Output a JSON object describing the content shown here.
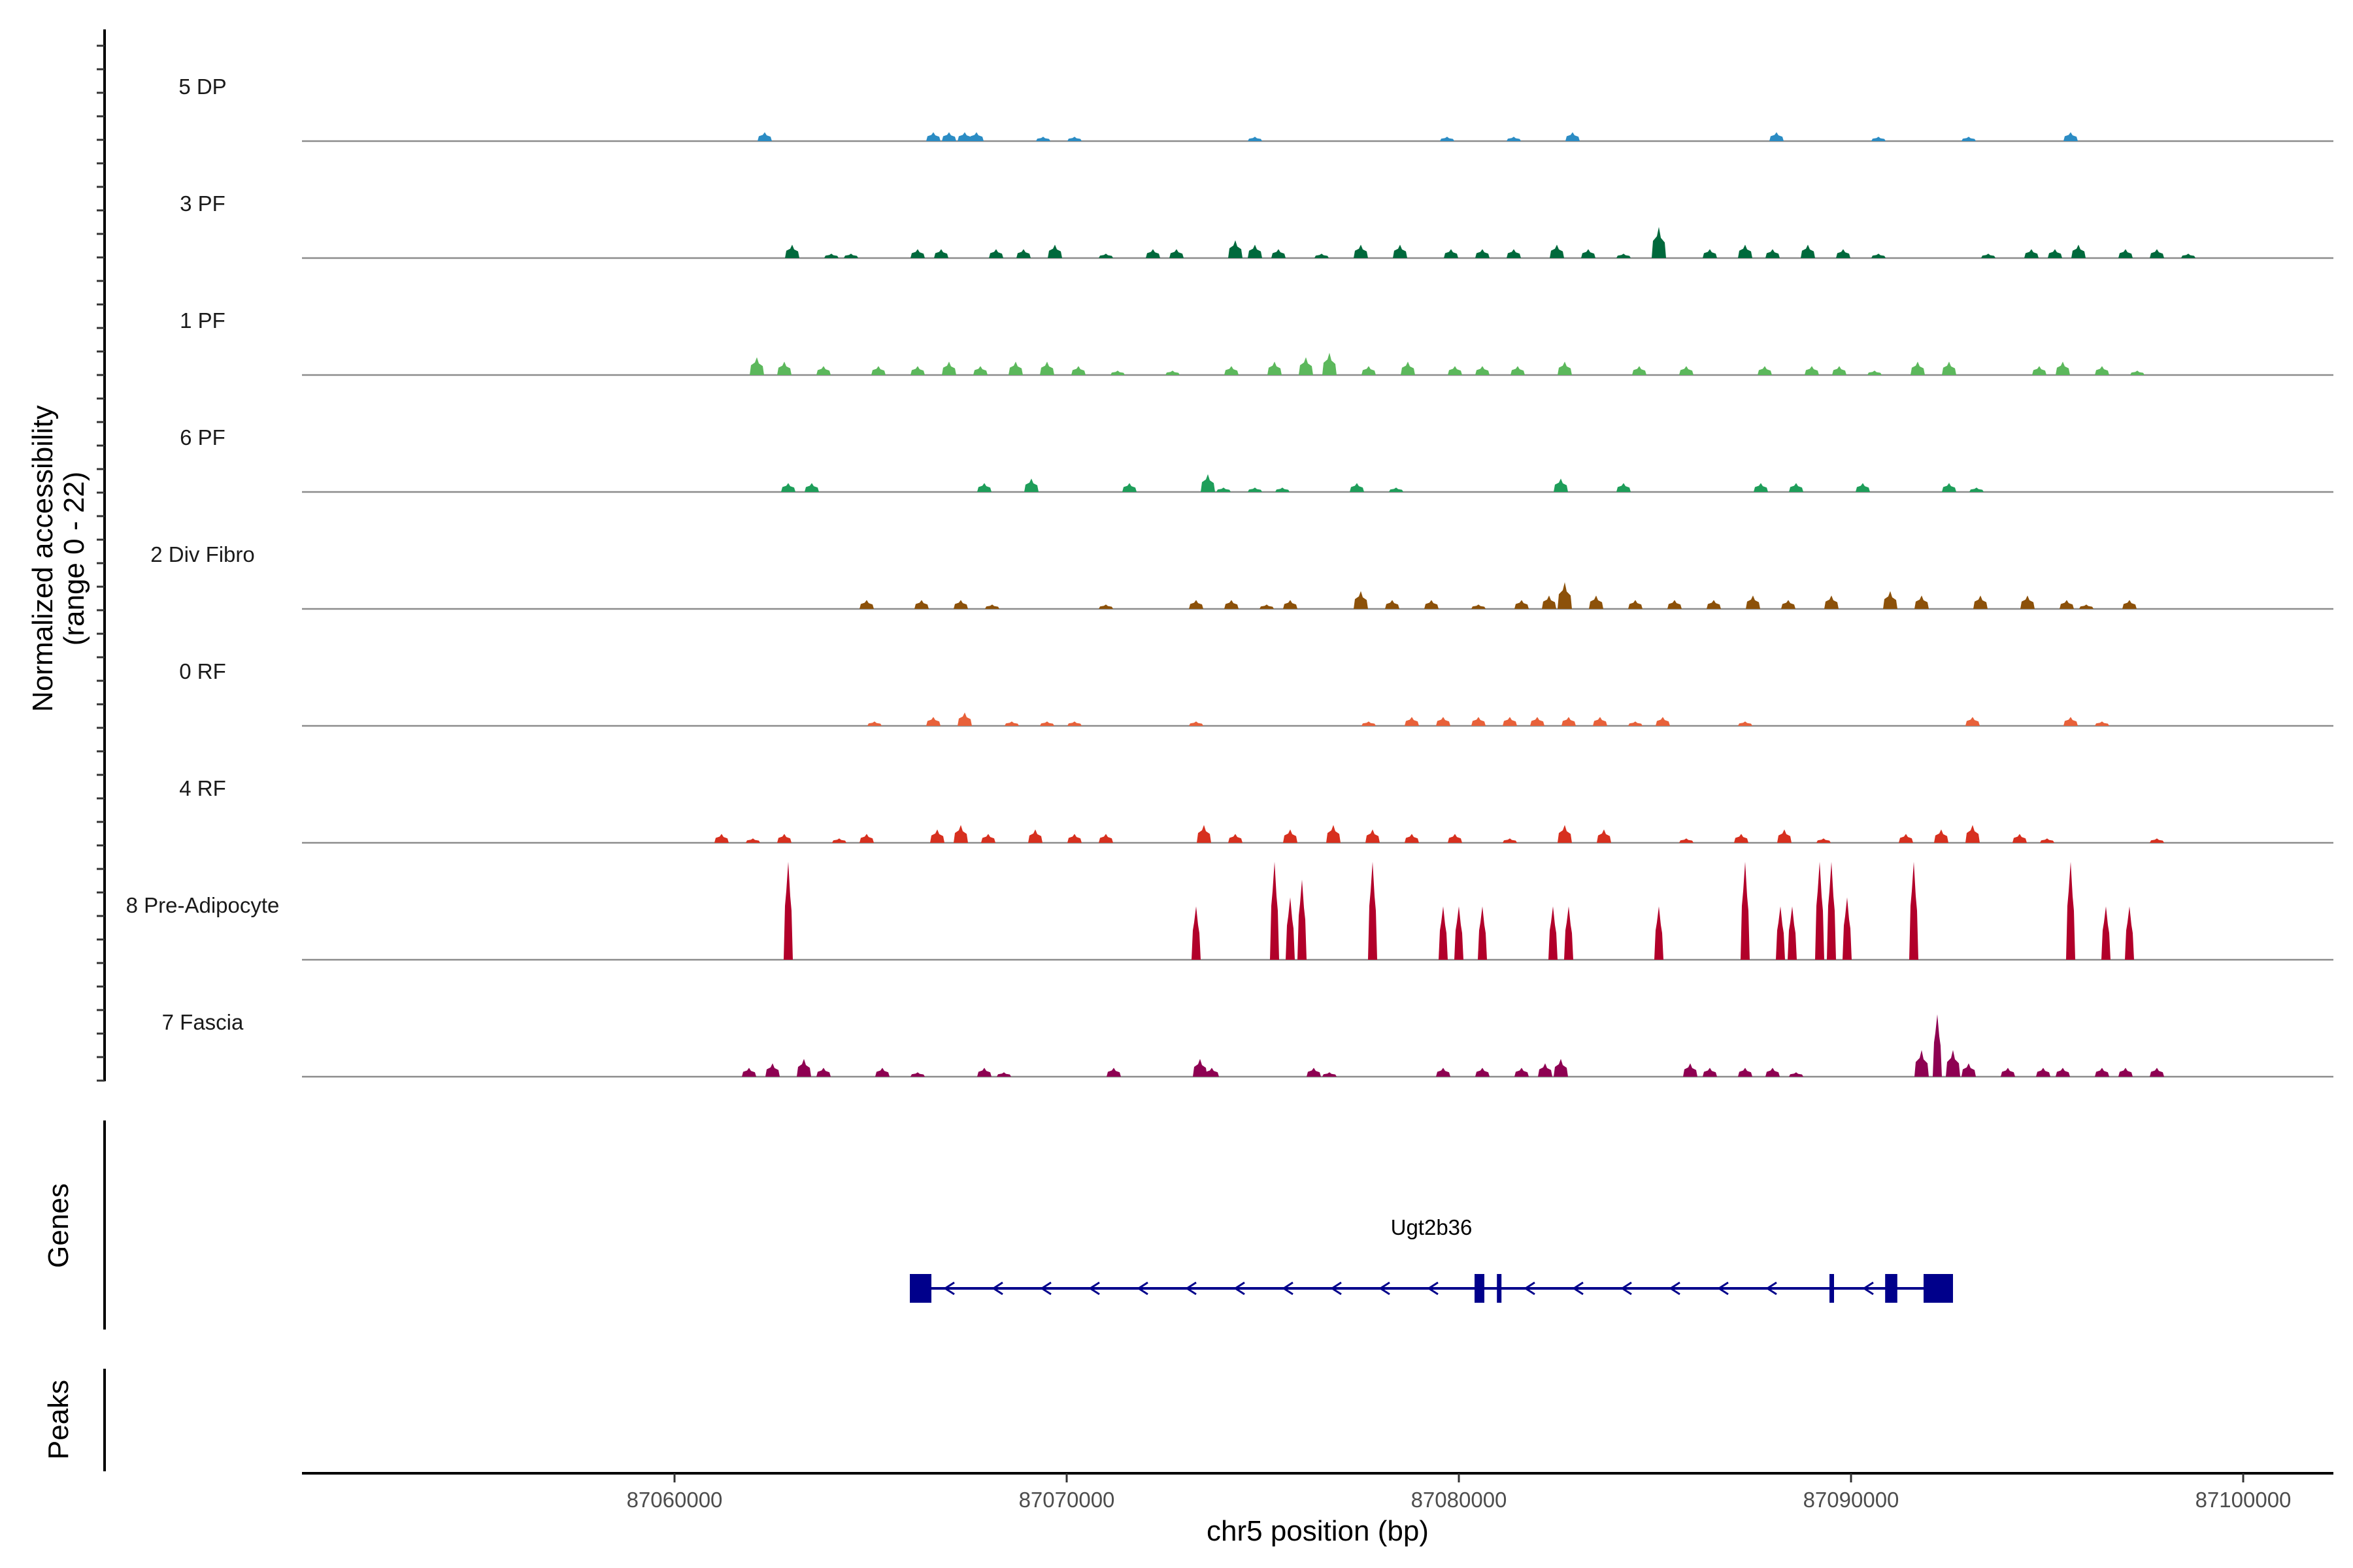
{
  "chart_data": {
    "type": "area",
    "title": "",
    "ylabel": "Normalized accessibility\n(range 0 - 22)",
    "y_range_label": "(range 0 - 22)",
    "ylabel_line1": "Normalized accessibility",
    "ylim": [
      0,
      22
    ],
    "xlabel": "chr5 position (bp)",
    "xlim": [
      87050500,
      87102300
    ],
    "x_ticks": [
      87060000,
      87070000,
      87080000,
      87090000,
      87100000
    ],
    "x_tick_labels": [
      "87060000",
      "87070000",
      "87080000",
      "87090000",
      "87100000"
    ],
    "tracks": [
      {
        "name": "5 DP",
        "color": "#2b8cc4",
        "peaks": [
          [
            87062300,
            2
          ],
          [
            87066600,
            2
          ],
          [
            87067000,
            2
          ],
          [
            87067400,
            2
          ],
          [
            87067700,
            2
          ],
          [
            87069400,
            1
          ],
          [
            87070200,
            1
          ],
          [
            87074800,
            1
          ],
          [
            87079700,
            1
          ],
          [
            87081400,
            1
          ],
          [
            87082900,
            2
          ],
          [
            87088100,
            2
          ],
          [
            87090700,
            1
          ],
          [
            87093000,
            1
          ],
          [
            87095600,
            2
          ]
        ]
      },
      {
        "name": "3 PF",
        "color": "#00693c",
        "peaks": [
          [
            87063000,
            3
          ],
          [
            87064000,
            1
          ],
          [
            87064500,
            1
          ],
          [
            87066200,
            2
          ],
          [
            87066800,
            2
          ],
          [
            87068200,
            2
          ],
          [
            87068900,
            2
          ],
          [
            87069700,
            3
          ],
          [
            87071000,
            1
          ],
          [
            87072200,
            2
          ],
          [
            87072800,
            2
          ],
          [
            87074300,
            4
          ],
          [
            87074800,
            3
          ],
          [
            87075400,
            2
          ],
          [
            87076500,
            1
          ],
          [
            87077500,
            3
          ],
          [
            87078500,
            3
          ],
          [
            87079800,
            2
          ],
          [
            87080600,
            2
          ],
          [
            87081400,
            2
          ],
          [
            87082500,
            3
          ],
          [
            87083300,
            2
          ],
          [
            87084200,
            1
          ],
          [
            87085100,
            7
          ],
          [
            87086400,
            2
          ],
          [
            87087300,
            3
          ],
          [
            87088000,
            2
          ],
          [
            87088900,
            3
          ],
          [
            87089800,
            2
          ],
          [
            87090700,
            1
          ],
          [
            87093500,
            1
          ],
          [
            87094600,
            2
          ],
          [
            87095200,
            2
          ],
          [
            87095800,
            3
          ],
          [
            87097000,
            2
          ],
          [
            87097800,
            2
          ],
          [
            87098600,
            1
          ]
        ]
      },
      {
        "name": "1 PF",
        "color": "#5cb85c",
        "peaks": [
          [
            87062100,
            4
          ],
          [
            87062800,
            3
          ],
          [
            87063800,
            2
          ],
          [
            87065200,
            2
          ],
          [
            87066200,
            2
          ],
          [
            87067000,
            3
          ],
          [
            87067800,
            2
          ],
          [
            87068700,
            3
          ],
          [
            87069500,
            3
          ],
          [
            87070300,
            2
          ],
          [
            87071300,
            1
          ],
          [
            87072700,
            1
          ],
          [
            87074200,
            2
          ],
          [
            87075300,
            3
          ],
          [
            87076100,
            4
          ],
          [
            87076700,
            5
          ],
          [
            87077700,
            2
          ],
          [
            87078700,
            3
          ],
          [
            87079900,
            2
          ],
          [
            87080600,
            2
          ],
          [
            87081500,
            2
          ],
          [
            87082700,
            3
          ],
          [
            87084600,
            2
          ],
          [
            87085800,
            2
          ],
          [
            87087800,
            2
          ],
          [
            87089000,
            2
          ],
          [
            87089700,
            2
          ],
          [
            87090600,
            1
          ],
          [
            87091700,
            3
          ],
          [
            87092500,
            3
          ],
          [
            87094800,
            2
          ],
          [
            87095400,
            3
          ],
          [
            87096400,
            2
          ],
          [
            87097300,
            1
          ]
        ]
      },
      {
        "name": "6 PF",
        "color": "#1e9e5a",
        "peaks": [
          [
            87062900,
            2
          ],
          [
            87063500,
            2
          ],
          [
            87067900,
            2
          ],
          [
            87069100,
            3
          ],
          [
            87071600,
            2
          ],
          [
            87073600,
            4
          ],
          [
            87074000,
            1
          ],
          [
            87074800,
            1
          ],
          [
            87075500,
            1
          ],
          [
            87077400,
            2
          ],
          [
            87078400,
            1
          ],
          [
            87082600,
            3
          ],
          [
            87084200,
            2
          ],
          [
            87087700,
            2
          ],
          [
            87088600,
            2
          ],
          [
            87090300,
            2
          ],
          [
            87092500,
            2
          ],
          [
            87093200,
            1
          ]
        ]
      },
      {
        "name": "2 Div Fibro",
        "color": "#8c510a",
        "peaks": [
          [
            87064900,
            2
          ],
          [
            87066300,
            2
          ],
          [
            87067300,
            2
          ],
          [
            87068100,
            1
          ],
          [
            87071000,
            1
          ],
          [
            87073300,
            2
          ],
          [
            87074200,
            2
          ],
          [
            87075100,
            1
          ],
          [
            87075700,
            2
          ],
          [
            87077500,
            4
          ],
          [
            87078300,
            2
          ],
          [
            87079300,
            2
          ],
          [
            87080500,
            1
          ],
          [
            87081600,
            2
          ],
          [
            87082300,
            3
          ],
          [
            87082700,
            6
          ],
          [
            87083500,
            3
          ],
          [
            87084500,
            2
          ],
          [
            87085500,
            2
          ],
          [
            87086500,
            2
          ],
          [
            87087500,
            3
          ],
          [
            87088400,
            2
          ],
          [
            87089500,
            3
          ],
          [
            87091000,
            4
          ],
          [
            87091800,
            3
          ],
          [
            87093300,
            3
          ],
          [
            87094500,
            3
          ],
          [
            87095500,
            2
          ],
          [
            87096000,
            1
          ],
          [
            87097100,
            2
          ]
        ]
      },
      {
        "name": "0 RF",
        "color": "#e8613a",
        "peaks": [
          [
            87065100,
            1
          ],
          [
            87066600,
            2
          ],
          [
            87067400,
            3
          ],
          [
            87068600,
            1
          ],
          [
            87069500,
            1
          ],
          [
            87070200,
            1
          ],
          [
            87073300,
            1
          ],
          [
            87077700,
            1
          ],
          [
            87078800,
            2
          ],
          [
            87079600,
            2
          ],
          [
            87080500,
            2
          ],
          [
            87081300,
            2
          ],
          [
            87082000,
            2
          ],
          [
            87082800,
            2
          ],
          [
            87083600,
            2
          ],
          [
            87084500,
            1
          ],
          [
            87085200,
            2
          ],
          [
            87087300,
            1
          ],
          [
            87093100,
            2
          ],
          [
            87095600,
            2
          ],
          [
            87096400,
            1
          ]
        ]
      },
      {
        "name": "4 RF",
        "color": "#d7301f",
        "peaks": [
          [
            87061200,
            2
          ],
          [
            87062000,
            1
          ],
          [
            87062800,
            2
          ],
          [
            87064200,
            1
          ],
          [
            87064900,
            2
          ],
          [
            87066700,
            3
          ],
          [
            87067300,
            4
          ],
          [
            87068000,
            2
          ],
          [
            87069200,
            3
          ],
          [
            87070200,
            2
          ],
          [
            87071000,
            2
          ],
          [
            87073500,
            4
          ],
          [
            87074300,
            2
          ],
          [
            87075700,
            3
          ],
          [
            87076800,
            4
          ],
          [
            87077800,
            3
          ],
          [
            87078800,
            2
          ],
          [
            87079900,
            2
          ],
          [
            87081300,
            1
          ],
          [
            87082700,
            4
          ],
          [
            87083700,
            3
          ],
          [
            87085800,
            1
          ],
          [
            87087200,
            2
          ],
          [
            87088300,
            3
          ],
          [
            87089300,
            1
          ],
          [
            87091400,
            2
          ],
          [
            87092300,
            3
          ],
          [
            87093100,
            4
          ],
          [
            87094300,
            2
          ],
          [
            87095000,
            1
          ],
          [
            87097800,
            1
          ]
        ]
      },
      {
        "name": "8 Pre-Adipocyte",
        "color": "#b2002a",
        "peaks": [
          [
            87062900,
            22
          ],
          [
            87073300,
            12
          ],
          [
            87075300,
            22
          ],
          [
            87075700,
            14
          ],
          [
            87076000,
            18
          ],
          [
            87077800,
            22
          ],
          [
            87079600,
            12
          ],
          [
            87080000,
            12
          ],
          [
            87080600,
            12
          ],
          [
            87082400,
            12
          ],
          [
            87082800,
            12
          ],
          [
            87085100,
            12
          ],
          [
            87087300,
            22
          ],
          [
            87088200,
            12
          ],
          [
            87088500,
            12
          ],
          [
            87089200,
            22
          ],
          [
            87089500,
            22
          ],
          [
            87089900,
            14
          ],
          [
            87091600,
            22
          ],
          [
            87095600,
            22
          ],
          [
            87096500,
            12
          ],
          [
            87097100,
            12
          ]
        ]
      },
      {
        "name": "7 Fascia",
        "color": "#8e0152",
        "peaks": [
          [
            87061900,
            2
          ],
          [
            87062500,
            3
          ],
          [
            87063300,
            4
          ],
          [
            87063800,
            2
          ],
          [
            87065300,
            2
          ],
          [
            87066200,
            1
          ],
          [
            87067900,
            2
          ],
          [
            87068400,
            1
          ],
          [
            87071200,
            2
          ],
          [
            87073400,
            4
          ],
          [
            87073700,
            2
          ],
          [
            87076300,
            2
          ],
          [
            87076700,
            1
          ],
          [
            87079600,
            2
          ],
          [
            87080600,
            2
          ],
          [
            87081600,
            2
          ],
          [
            87082200,
            3
          ],
          [
            87082600,
            4
          ],
          [
            87085900,
            3
          ],
          [
            87086400,
            2
          ],
          [
            87087300,
            2
          ],
          [
            87088000,
            2
          ],
          [
            87088600,
            1
          ],
          [
            87091800,
            6
          ],
          [
            87092200,
            14
          ],
          [
            87092600,
            6
          ],
          [
            87093000,
            3
          ],
          [
            87094000,
            2
          ],
          [
            87094900,
            2
          ],
          [
            87095400,
            2
          ],
          [
            87096400,
            2
          ],
          [
            87097000,
            2
          ],
          [
            87097800,
            2
          ]
        ]
      }
    ],
    "genes": [
      {
        "name": "Ugt2b36",
        "strand": "-",
        "start": 87066000,
        "end": 87092600,
        "exons": [
          [
            87066000,
            87066550
          ],
          [
            87080400,
            87080650
          ],
          [
            87080970,
            87081020
          ],
          [
            87089450,
            87089560
          ],
          [
            87090870,
            87091180
          ],
          [
            87091850,
            87092600
          ]
        ]
      }
    ],
    "panel_labels": {
      "genes": "Genes",
      "peaks": "Peaks"
    }
  }
}
